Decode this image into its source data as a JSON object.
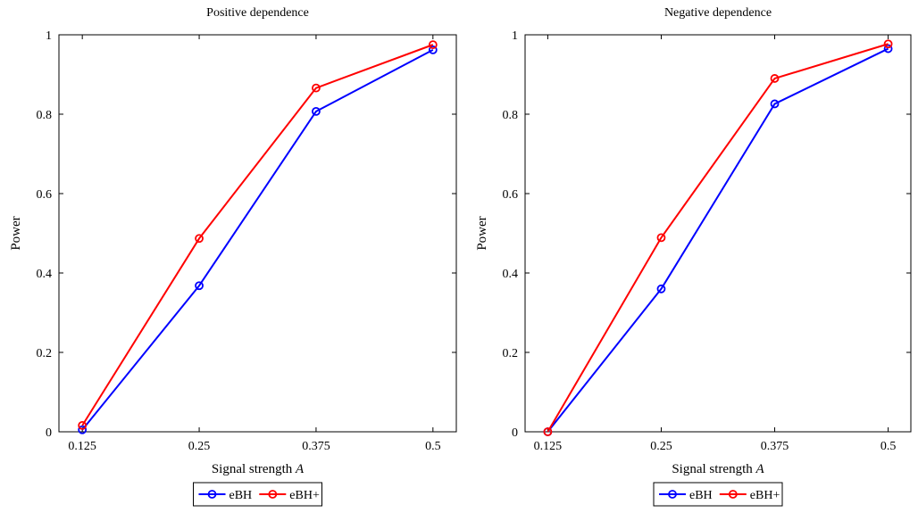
{
  "chart_data": [
    {
      "type": "line",
      "title": "Positive dependence",
      "xlabel": "Signal strength",
      "xlabel_var": "A",
      "ylabel": "Power",
      "x": [
        0.125,
        0.25,
        0.375,
        0.5
      ],
      "x_tick_labels": [
        "0.125",
        "0.25",
        "0.375",
        "0.5"
      ],
      "y_ticks": [
        0,
        0.2,
        0.4,
        0.6,
        0.8,
        1
      ],
      "y_tick_labels": [
        "0",
        "0.2",
        "0.4",
        "0.6",
        "0.8",
        "1"
      ],
      "xlim": [
        0.1,
        0.525
      ],
      "ylim": [
        0,
        1
      ],
      "grid": false,
      "legend_position": "bottom-center",
      "series": [
        {
          "name": "eBH",
          "color": "#0000ff",
          "marker": "circle",
          "values": [
            0.005,
            0.368,
            0.807,
            0.962
          ]
        },
        {
          "name": "eBH+",
          "color": "#ff0000",
          "marker": "circle",
          "values": [
            0.016,
            0.487,
            0.866,
            0.975
          ]
        }
      ]
    },
    {
      "type": "line",
      "title": "Negative dependence",
      "xlabel": "Signal strength",
      "xlabel_var": "A",
      "ylabel": "Power",
      "x": [
        0.125,
        0.25,
        0.375,
        0.5
      ],
      "x_tick_labels": [
        "0.125",
        "0.25",
        "0.375",
        "0.5"
      ],
      "y_ticks": [
        0,
        0.2,
        0.4,
        0.6,
        0.8,
        1
      ],
      "y_tick_labels": [
        "0",
        "0.2",
        "0.4",
        "0.6",
        "0.8",
        "1"
      ],
      "xlim": [
        0.1,
        0.525
      ],
      "ylim": [
        0,
        1
      ],
      "grid": false,
      "legend_position": "bottom-center",
      "series": [
        {
          "name": "eBH",
          "color": "#0000ff",
          "marker": "circle",
          "values": [
            0.0,
            0.36,
            0.826,
            0.965
          ]
        },
        {
          "name": "eBH+",
          "color": "#ff0000",
          "marker": "circle",
          "values": [
            0.0,
            0.489,
            0.89,
            0.977
          ]
        }
      ]
    }
  ]
}
